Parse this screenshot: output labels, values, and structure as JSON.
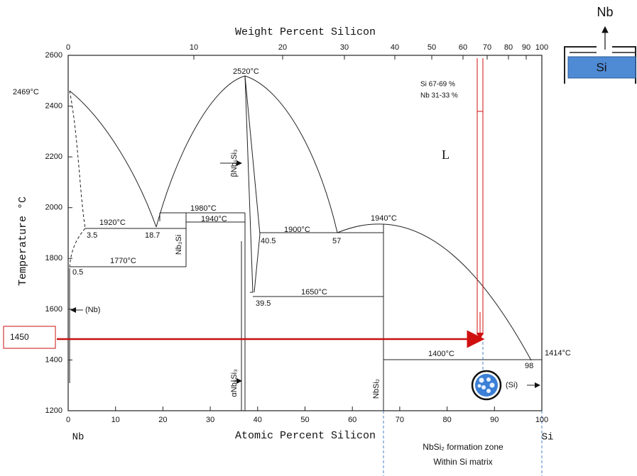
{
  "top_axis": {
    "title": "Weight Percent Silicon",
    "ticks": [
      "0",
      "10",
      "20",
      "30",
      "40",
      "50",
      "60",
      "70",
      "80",
      "90",
      "100"
    ]
  },
  "bottom_axis": {
    "title": "Atomic Percent Silicon",
    "ticks": [
      "0",
      "10",
      "20",
      "30",
      "40",
      "50",
      "60",
      "70",
      "80",
      "90",
      "100"
    ],
    "left_element": "Nb",
    "right_element": "Si"
  },
  "left_axis": {
    "title": "Temperature °C",
    "ticks": [
      "1200",
      "1400",
      "1600",
      "1800",
      "2000",
      "2200",
      "2400",
      "2600"
    ]
  },
  "annotations": [
    "2469°C",
    "2520°C",
    "1920°C",
    "3.5",
    "18.7",
    "1980°C",
    "1940°C",
    "1900°C",
    "40.5",
    "57",
    "1940°C",
    "1770°C",
    "0.5",
    "1650°C",
    "39.5",
    "1400°C",
    "98",
    "1414°C",
    "L",
    "(Nb)",
    "(Si)"
  ],
  "phases": [
    "βNb₅Si₃",
    "Nb₃Si",
    "αNb₅Si₃",
    "NbSi₂"
  ],
  "callout": "1450",
  "composition": [
    "Si 67-69 %",
    "Nb 31-33 %"
  ],
  "note": [
    "NbSi₂ formation zone",
    "Within Si matrix"
  ],
  "inset": {
    "top": "Nb",
    "bottom": "Si"
  }
}
